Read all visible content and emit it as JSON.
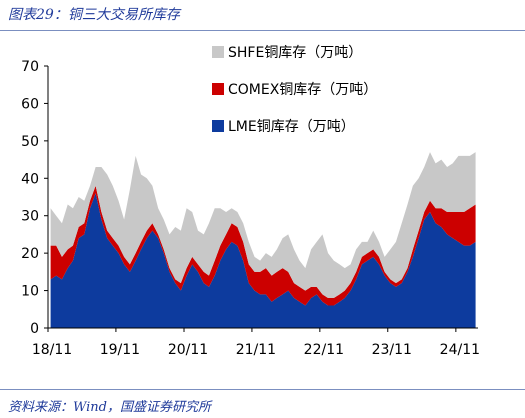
{
  "header": {
    "title": "图表29：铜三大交易所库存"
  },
  "footer": {
    "source": "资料来源：Wind，国盛证券研究所"
  },
  "chart_data": {
    "type": "area",
    "stacked": true,
    "title": "图表29：铜三大交易所库存",
    "xlabel": "",
    "ylabel": "",
    "ylim": [
      0,
      70
    ],
    "yticks": [
      0,
      10,
      20,
      30,
      40,
      50,
      60,
      70
    ],
    "xlim": [
      "2018-11-01",
      "2025-02-28"
    ],
    "xticks": [
      {
        "date": "2018-11-01",
        "label": "18/11"
      },
      {
        "date": "2019-11-01",
        "label": "19/11"
      },
      {
        "date": "2020-11-01",
        "label": "20/11"
      },
      {
        "date": "2021-11-01",
        "label": "21/11"
      },
      {
        "date": "2022-11-01",
        "label": "22/11"
      },
      {
        "date": "2023-11-01",
        "label": "23/11"
      },
      {
        "date": "2024-11-01",
        "label": "24/11"
      }
    ],
    "legend_position": "top-right",
    "grid": false,
    "x": [
      "2018-11",
      "2018-12",
      "2019-01",
      "2019-02",
      "2019-03",
      "2019-04",
      "2019-05",
      "2019-06",
      "2019-07",
      "2019-08",
      "2019-09",
      "2019-10",
      "2019-11",
      "2019-12",
      "2020-01",
      "2020-02",
      "2020-03",
      "2020-04",
      "2020-05",
      "2020-06",
      "2020-07",
      "2020-08",
      "2020-09",
      "2020-10",
      "2020-11",
      "2020-12",
      "2021-01",
      "2021-02",
      "2021-03",
      "2021-04",
      "2021-05",
      "2021-06",
      "2021-07",
      "2021-08",
      "2021-09",
      "2021-10",
      "2021-11",
      "2021-12",
      "2022-01",
      "2022-02",
      "2022-03",
      "2022-04",
      "2022-05",
      "2022-06",
      "2022-07",
      "2022-08",
      "2022-09",
      "2022-10",
      "2022-11",
      "2022-12",
      "2023-01",
      "2023-02",
      "2023-03",
      "2023-04",
      "2023-05",
      "2023-06",
      "2023-07",
      "2023-08",
      "2023-09",
      "2023-10",
      "2023-11",
      "2023-12",
      "2024-01",
      "2024-02",
      "2024-03",
      "2024-04",
      "2024-05",
      "2024-06",
      "2024-07",
      "2024-08",
      "2024-09",
      "2024-10",
      "2024-11",
      "2024-12",
      "2025-01",
      "2025-02"
    ],
    "series": [
      {
        "name": "LME铜库存（万吨）",
        "color": "#0d3b9e",
        "values": [
          13,
          14,
          13,
          16,
          18,
          24,
          25,
          32,
          36,
          29,
          24,
          22,
          20,
          17,
          15,
          18,
          21,
          24,
          26,
          24,
          20,
          15,
          12,
          10,
          14,
          17,
          15,
          12,
          11,
          14,
          18,
          21,
          23,
          22,
          18,
          12,
          10,
          9,
          9,
          7,
          8,
          9,
          10,
          8,
          7,
          6,
          8,
          9,
          7,
          6,
          6,
          7,
          8,
          10,
          13,
          17,
          18,
          19,
          17,
          14,
          12,
          11,
          12,
          15,
          19,
          24,
          29,
          31,
          28,
          27,
          25,
          24,
          23,
          22,
          22,
          23
        ]
      },
      {
        "name": "COMEX铜库存（万吨）",
        "color": "#cc0000",
        "values": [
          9,
          8,
          6,
          5,
          4,
          3,
          3,
          2,
          2,
          2,
          2,
          2,
          2,
          2,
          2,
          2,
          2,
          2,
          2,
          1,
          1,
          1,
          1,
          2,
          2,
          2,
          2,
          3,
          3,
          4,
          4,
          4,
          5,
          5,
          5,
          5,
          5,
          6,
          7,
          7,
          7,
          7,
          5,
          4,
          4,
          4,
          3,
          2,
          2,
          2,
          2,
          2,
          2,
          2,
          2,
          2,
          2,
          2,
          2,
          1,
          1,
          1,
          1,
          1,
          2,
          2,
          2,
          3,
          4,
          5,
          6,
          7,
          8,
          9,
          10,
          10
        ]
      },
      {
        "name": "SHFE铜库存（万吨）",
        "color": "#c8c8c8",
        "values": [
          10,
          8,
          9,
          12,
          10,
          8,
          6,
          4,
          5,
          12,
          15,
          14,
          12,
          10,
          20,
          26,
          18,
          14,
          10,
          7,
          8,
          9,
          14,
          14,
          16,
          12,
          9,
          10,
          14,
          14,
          10,
          6,
          4,
          4,
          5,
          6,
          4,
          3,
          4,
          5,
          6,
          8,
          10,
          9,
          7,
          6,
          10,
          12,
          16,
          12,
          10,
          8,
          6,
          5,
          6,
          4,
          3,
          5,
          4,
          4,
          8,
          11,
          15,
          17,
          17,
          14,
          12,
          13,
          12,
          13,
          12,
          13,
          15,
          15,
          14,
          14
        ]
      }
    ]
  }
}
